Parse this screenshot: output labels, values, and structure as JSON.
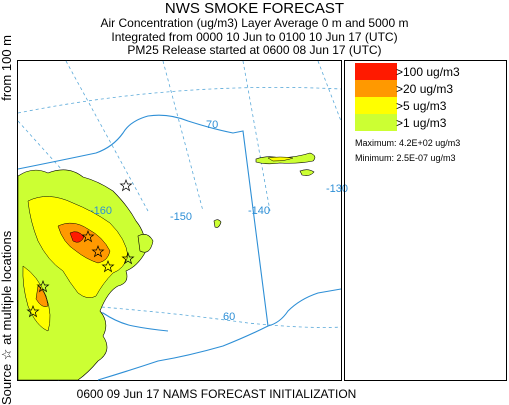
{
  "header": {
    "title": "NWS SMOKE FORECAST",
    "line2": "Air Concentration (ug/m3) Layer Average    0 m and  5000 m",
    "line3": "Integrated from 0000 10 Jun to 0100 10 Jun 17 (UTC)",
    "line4": "PM25 Release started at 0600 08 Jun 17 (UTC)"
  },
  "side_label": {
    "part1": "Source ☆ at multiple locations",
    "part2": "from   100 m"
  },
  "map": {
    "lon_labels": [
      "-160",
      "-150",
      "-140",
      "-130"
    ],
    "lat_labels": [
      "70",
      "60"
    ],
    "colors": {
      "gt100": "#ff1a00",
      "gt20": "#ff9900",
      "gt5": "#ffff00",
      "gt1": "#ccff33",
      "coast": "#2e8fd6",
      "grid": "#5aa9d9"
    }
  },
  "legend": {
    "items": [
      {
        "label": ">100 ug/m3",
        "color": "#ff1a00"
      },
      {
        "label": ">20 ug/m3",
        "color": "#ff9900"
      },
      {
        "label": ">5 ug/m3",
        "color": "#ffff00"
      },
      {
        "label": ">1 ug/m3",
        "color": "#ccff33"
      }
    ],
    "maximum": "Maximum: 4.2E+02 ug/m3",
    "minimum": "Minimum: 2.5E-07 ug/m3"
  },
  "footer": "0600 09 Jun 17 NAMS FORECAST INITIALIZATION"
}
